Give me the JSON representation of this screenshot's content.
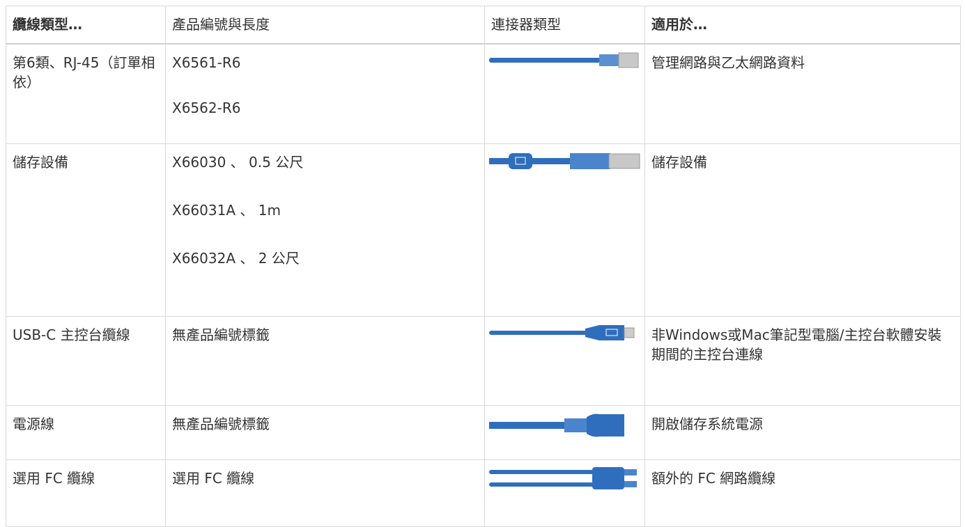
{
  "table": {
    "header": [
      "纜線類型…",
      "產品編號與長度",
      "連接器類型",
      "適用於…"
    ],
    "rows": [
      {
        "cable_type": "第6類、RJ-45（訂單相依）",
        "part_numbers": [
          "X6561-R6",
          "X6562-R6"
        ],
        "used_for": "管理網路與乙太網路資料"
      },
      {
        "cable_type": "儲存設備",
        "part_numbers": [
          "X66030 、 0.5 公尺",
          "X66031A 、 1m",
          "X66032A 、 2 公尺"
        ],
        "used_for": "儲存設備"
      },
      {
        "cable_type": "USB-C 主控台纜線",
        "part_numbers": [
          "無產品編號標籤"
        ],
        "used_for": "非Windows或Mac筆記型電腦/主控台軟體安裝期間的主控台連線"
      },
      {
        "cable_type": "電源線",
        "part_numbers": [
          "無產品編號標籤"
        ],
        "used_for": "開啟儲存系統電源"
      },
      {
        "cable_type": "選用 FC 纜線",
        "part_numbers": [
          "選用 FC 纜線"
        ],
        "used_for": "額外的 FC 網路纜線"
      }
    ]
  }
}
